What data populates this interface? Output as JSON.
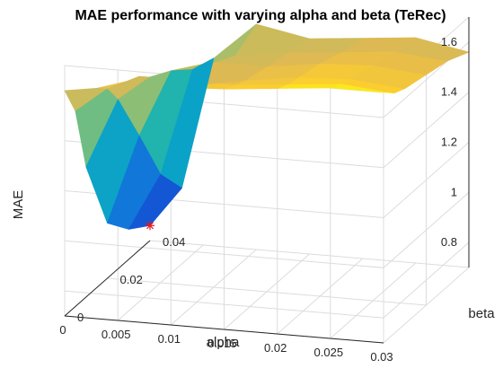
{
  "chart_data": {
    "type": "surface",
    "title": "MAE performance with varying alpha and beta (TeRec)",
    "xlabel": "alpha",
    "ylabel": "beta",
    "zlabel": "MAE",
    "xlim": [
      0,
      0.03
    ],
    "ylim": [
      0,
      0.04
    ],
    "zlim": [
      0.7,
      1.7
    ],
    "xticks": [
      "0.03",
      "0.025",
      "0.02",
      "0.015",
      "0.01",
      "0.005",
      "0"
    ],
    "yticks": [
      "0",
      "0.02",
      "0.04"
    ],
    "zticks": [
      "0.8",
      "1",
      "1.2",
      "1.4",
      "1.6"
    ],
    "grid": true,
    "colormap": "parula",
    "alpha": [
      0.0,
      0.003,
      0.006,
      0.01,
      0.015,
      0.02,
      0.025,
      0.03
    ],
    "beta": [
      0.0,
      0.005,
      0.01,
      0.02,
      0.03,
      0.04
    ],
    "mae": [
      [
        1.6,
        1.48,
        1.22,
        0.92,
        0.82,
        0.76
      ],
      [
        1.62,
        1.58,
        1.5,
        1.28,
        1.05,
        0.92
      ],
      [
        1.66,
        1.64,
        1.6,
        1.55,
        1.48,
        1.45
      ],
      [
        1.65,
        1.64,
        1.58,
        1.6,
        1.55,
        1.6
      ],
      [
        1.66,
        1.64,
        1.62,
        1.6,
        1.58,
        1.56
      ],
      [
        1.68,
        1.66,
        1.65,
        1.63,
        1.6,
        1.58
      ],
      [
        1.7,
        1.68,
        1.66,
        1.64,
        1.62,
        1.6
      ],
      [
        1.7,
        1.66,
        1.64,
        1.62,
        1.6,
        1.56
      ]
    ],
    "minimum": {
      "alpha": 0.0,
      "beta": 0.04,
      "mae": 0.76,
      "marker": "*",
      "color": "#e8161c"
    }
  }
}
